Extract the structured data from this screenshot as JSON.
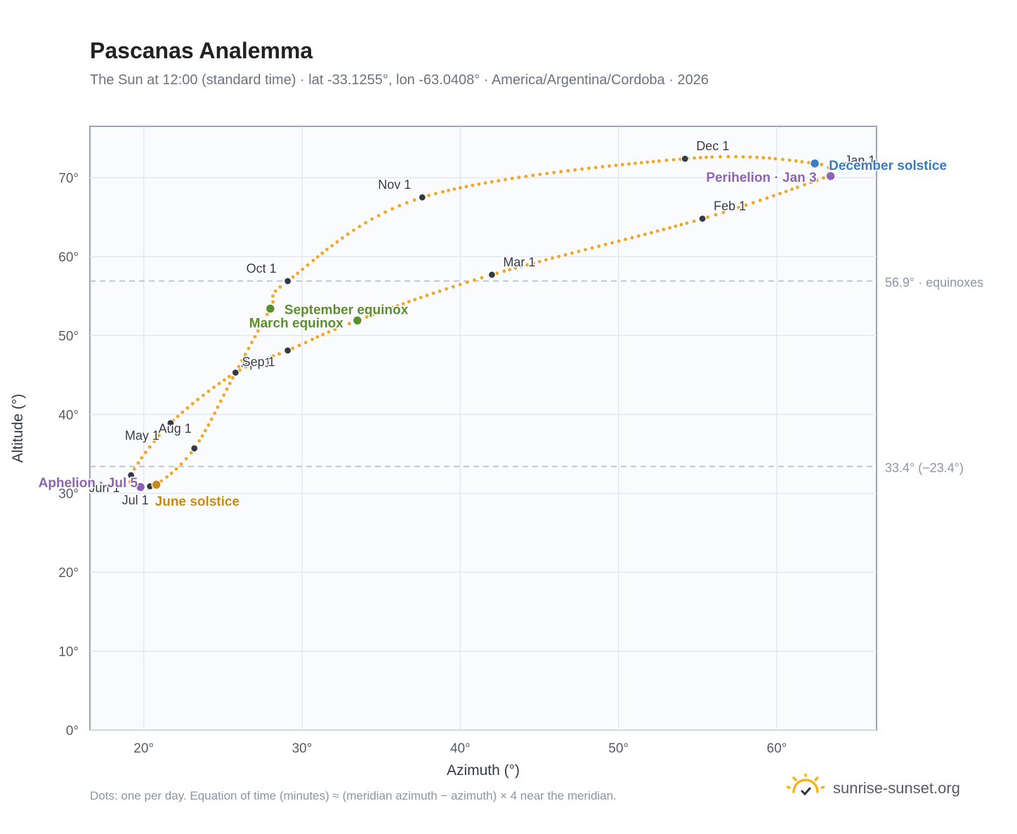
{
  "header": {
    "title": "Pascanas Analemma",
    "subtitle": "The Sun at 12:00 (standard time) · lat -33.1255°, lon -63.0408° · America/Argentina/Cordoba · 2026"
  },
  "footer": {
    "note": "Dots: one per day. Equation of time (minutes) ≈ (meridian azimuth − azimuth) × 4 near the meridian.",
    "brand": "sunrise-sunset.org",
    "brand_icon": "sun-logo-icon"
  },
  "colors": {
    "curve": "#F2A626",
    "month_marker": "#333a44",
    "equinox": "#5A8F2E",
    "june_solstice": "#C98A12",
    "december_solstice": "#3A7BC0",
    "apsis": "#8E63B5",
    "grid": "#e3e8ee",
    "reference_line": "#b8c0cc",
    "plot_bg": "#f9fbfd",
    "plot_border": "#9aa4b2"
  },
  "chart_data": {
    "type": "scatter",
    "xlabel": "Azimuth (°)",
    "ylabel": "Altitude (°)",
    "xlim": [
      16.6,
      66.3
    ],
    "ylim": [
      0,
      76.5
    ],
    "x_ticks": [
      "20°",
      "30°",
      "40°",
      "50°",
      "60°"
    ],
    "y_ticks": [
      "0°",
      "10°",
      "20°",
      "30°",
      "40°",
      "50°",
      "60°",
      "70°"
    ],
    "x_tick_values": [
      20,
      30,
      40,
      50,
      60
    ],
    "y_tick_values": [
      0,
      10,
      20,
      30,
      40,
      50,
      60,
      70
    ],
    "grid": true,
    "series": [
      {
        "path": [
          [
            63.3,
            70.2
          ],
          [
            55.3,
            64.8
          ],
          [
            42.0,
            57.7
          ],
          [
            33.5,
            51.9
          ],
          [
            29.1,
            48.1
          ],
          [
            25.8,
            45.3
          ],
          [
            21.7,
            38.9
          ],
          [
            19.2,
            32.3
          ],
          [
            19.8,
            30.8
          ],
          [
            20.8,
            31.1
          ],
          [
            23.2,
            35.7
          ],
          [
            25.8,
            45.3
          ],
          [
            28.0,
            53.4
          ],
          [
            29.1,
            56.9
          ],
          [
            37.6,
            67.5
          ],
          [
            54.2,
            72.4
          ],
          [
            62.4,
            71.8
          ],
          [
            63.3,
            70.2
          ]
        ]
      }
    ],
    "month_markers": [
      {
        "label": "Jan 1",
        "az": 63.3,
        "alt": 70.4
      },
      {
        "label": "Feb 1",
        "az": 55.3,
        "alt": 64.8
      },
      {
        "label": "Mar 1",
        "az": 42.0,
        "alt": 57.7
      },
      {
        "label": "Apr 1",
        "az": 25.8,
        "alt": 45.3
      },
      {
        "label": "May 1",
        "az": 21.7,
        "alt": 38.9
      },
      {
        "label": "Jun 1",
        "az": 19.2,
        "alt": 32.3
      },
      {
        "label": "Jul 1",
        "az": 20.4,
        "alt": 30.9
      },
      {
        "label": "Aug 1",
        "az": 23.2,
        "alt": 35.7
      },
      {
        "label": "Sep 1",
        "az": 29.1,
        "alt": 48.1
      },
      {
        "label": "Oct 1",
        "az": 29.1,
        "alt": 56.9
      },
      {
        "label": "Nov 1",
        "az": 37.6,
        "alt": 67.5
      },
      {
        "label": "Dec 1",
        "az": 54.2,
        "alt": 72.4
      }
    ],
    "events": [
      {
        "label": "March equinox",
        "az": 33.5,
        "alt": 51.9,
        "kind": "equinox"
      },
      {
        "label": "September equinox",
        "az": 28.0,
        "alt": 53.4,
        "kind": "equinox"
      },
      {
        "label": "June solstice",
        "az": 20.8,
        "alt": 31.1,
        "kind": "june_solstice"
      },
      {
        "label": "December solstice",
        "az": 62.4,
        "alt": 71.8,
        "kind": "december_solstice"
      },
      {
        "label": "Perihelion · Jan 3",
        "az": 63.4,
        "alt": 70.2,
        "kind": "apsis"
      },
      {
        "label": "Aphelion · Jul 5",
        "az": 19.8,
        "alt": 30.8,
        "kind": "apsis"
      }
    ],
    "reference_lines": [
      {
        "alt": 56.9,
        "label": "56.9° · equinoxes"
      },
      {
        "alt": 33.4,
        "label": "33.4° (−23.4°)"
      }
    ]
  }
}
